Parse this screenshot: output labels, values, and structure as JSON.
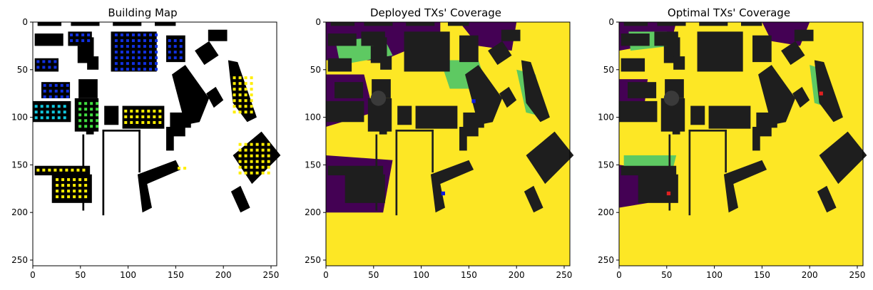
{
  "chart_data": [
    {
      "type": "heatmap",
      "title": "Building Map",
      "xlim": [
        0,
        256
      ],
      "ylim": [
        256,
        0
      ],
      "xticks": [
        0,
        50,
        100,
        150,
        200,
        250
      ],
      "yticks": [
        0,
        50,
        100,
        150,
        200,
        250
      ],
      "grid": false
    },
    {
      "type": "heatmap",
      "title": "Deployed TXs' Coverage",
      "xlim": [
        0,
        256
      ],
      "ylim": [
        256,
        0
      ],
      "xticks": [
        0,
        50,
        100,
        150,
        200,
        250
      ],
      "yticks": [
        0,
        50,
        100,
        150,
        200,
        250
      ],
      "grid": false,
      "transmitters": [
        {
          "x": 155,
          "y": 83,
          "color": "#0a1ae0"
        },
        {
          "x": 123,
          "y": 180,
          "color": "#0a1ae0"
        }
      ]
    },
    {
      "type": "heatmap",
      "title": "Optimal TXs' Coverage",
      "xlim": [
        0,
        256
      ],
      "ylim": [
        256,
        0
      ],
      "xticks": [
        0,
        50,
        100,
        150,
        200,
        250
      ],
      "yticks": [
        0,
        50,
        100,
        150,
        200,
        250
      ],
      "grid": false,
      "transmitters": [
        {
          "x": 212,
          "y": 75,
          "color": "#e02020"
        },
        {
          "x": 52,
          "y": 180,
          "color": "#e02020"
        }
      ]
    }
  ],
  "colors": {
    "building": "#000000",
    "background_map": "#ffffff",
    "coverage_high": "#fde725",
    "coverage_mid": "#5ec962",
    "coverage_teal": "#21918c",
    "coverage_low": "#440154",
    "building_shade": "#1e1e1e",
    "tx_blue": "#0a1ae0",
    "tx_red": "#e02020",
    "dot_yellow": "#ffee00",
    "dot_blue": "#1030e0",
    "dot_cyan": "#10c8e0",
    "dot_green": "#40e040"
  }
}
